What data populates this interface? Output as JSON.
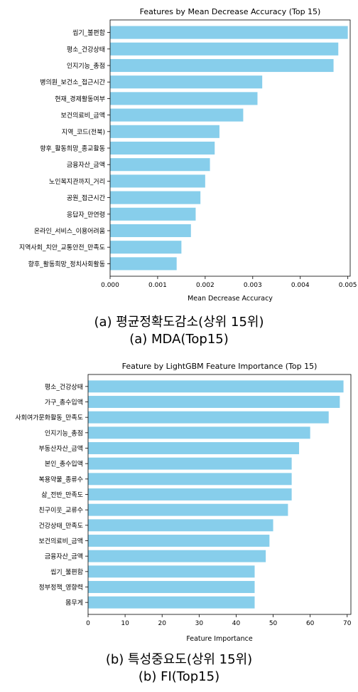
{
  "chart_data": [
    {
      "type": "bar",
      "orientation": "horizontal",
      "title": "Features by Mean Decrease Accuracy (Top 15)",
      "xlabel": "Mean Decrease Accuracy",
      "ylabel": "",
      "xlim": [
        0,
        0.00505
      ],
      "xticks": [
        "0.000",
        "0.001",
        "0.002",
        "0.003",
        "0.004",
        "0.005"
      ],
      "xtick_values": [
        0,
        0.001,
        0.002,
        0.003,
        0.004,
        0.005
      ],
      "bar_color": "#87ceeb",
      "grid": false,
      "categories": [
        "씹기_불편함",
        "평소_건강상태",
        "인지기능_총점",
        "병의원_보건소_접근시간",
        "현재_경제활동여부",
        "보건의료비_금액",
        "지역_코드(전북)",
        "향후_활동희망_종교활동",
        "금융자산_금액",
        "노인복지관까지_거리",
        "공원_접근시간",
        "응답자_만연령",
        "온라인_서비스_이용어려움",
        "지역사회_치안_교통안전_만족도",
        "향후_활동희망_정치사회활동"
      ],
      "values": [
        0.005,
        0.0048,
        0.0047,
        0.0032,
        0.0031,
        0.0028,
        0.0023,
        0.0022,
        0.0021,
        0.002,
        0.0019,
        0.0018,
        0.0017,
        0.0015,
        0.0014
      ]
    },
    {
      "type": "bar",
      "orientation": "horizontal",
      "title": "Feature by LightGBM Feature Importance (Top 15)",
      "xlabel": "Feature Importance",
      "ylabel": "",
      "xlim": [
        0,
        71
      ],
      "xticks": [
        "0",
        "10",
        "20",
        "30",
        "40",
        "50",
        "60",
        "70"
      ],
      "xtick_values": [
        0,
        10,
        20,
        30,
        40,
        50,
        60,
        70
      ],
      "bar_color": "#87ceeb",
      "grid": false,
      "categories": [
        "평소_건강상태",
        "가구_총수입액",
        "사회여가문화활동_만족도",
        "인지기능_총점",
        "부동산자산_금액",
        "본인_총수입액",
        "복용약물_종류수",
        "삶_전반_만족도",
        "친구이웃_교류수",
        "건강상태_만족도",
        "보건의료비_금액",
        "금융자산_금액",
        "씹기_불편함",
        "정부정책_영향력",
        "몸무게"
      ],
      "values": [
        69,
        68,
        65,
        60,
        57,
        55,
        55,
        55,
        54,
        50,
        49,
        48,
        45,
        45,
        45
      ]
    }
  ],
  "captions": {
    "a_korean": "(a) 평균정확도감소(상위 15위)",
    "a_english": "(a) MDA(Top15)",
    "b_korean": "(b) 특성중요도(상위 15위)",
    "b_english": "(b) FI(Top15)"
  }
}
